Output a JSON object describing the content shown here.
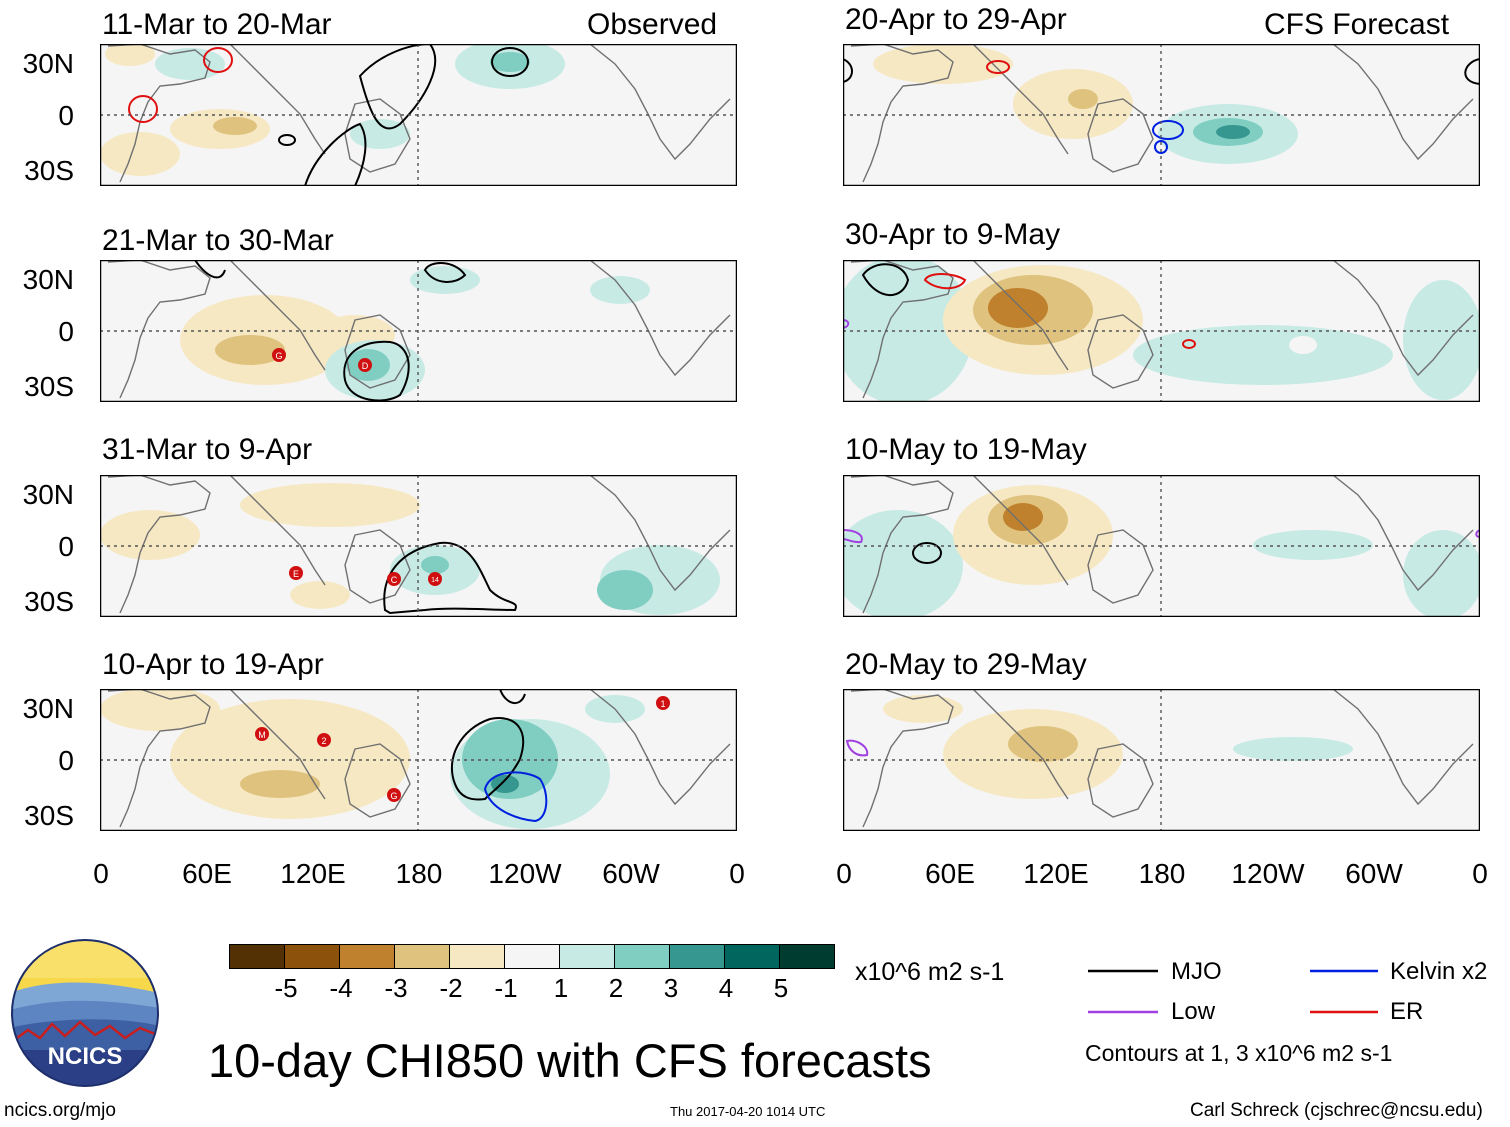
{
  "left_panels": [
    {
      "title": "11-Mar to 20-Mar",
      "tag": "Observed"
    },
    {
      "title": "21-Mar to 30-Mar",
      "tag": ""
    },
    {
      "title": "31-Mar to 9-Apr",
      "tag": ""
    },
    {
      "title": "10-Apr to 19-Apr",
      "tag": ""
    }
  ],
  "right_panels": [
    {
      "title": "20-Apr to 29-Apr",
      "tag": "CFS Forecast"
    },
    {
      "title": "30-Apr to 9-May",
      "tag": ""
    },
    {
      "title": "10-May to 19-May",
      "tag": ""
    },
    {
      "title": "20-May to 29-May",
      "tag": ""
    }
  ],
  "lat_labels": [
    "30N",
    "0",
    "30S"
  ],
  "lon_labels": [
    "0",
    "60E",
    "120E",
    "180",
    "120W",
    "60W",
    "0"
  ],
  "storm_labels": {
    "p2": [
      "G",
      "D"
    ],
    "p3": [
      "E",
      "C",
      "14"
    ],
    "p4": [
      "M",
      "2",
      "G",
      "1"
    ]
  },
  "colorbar": {
    "colors": [
      "#543005",
      "#8c510a",
      "#bf812d",
      "#dfc27d",
      "#f6e8c3",
      "#f5f5f5",
      "#c7eae5",
      "#80cdc1",
      "#35978f",
      "#01665e",
      "#003c30"
    ],
    "tick_labels": [
      "-5",
      "-4",
      "-3",
      "-2",
      "-1",
      "1",
      "2",
      "3",
      "4",
      "5"
    ],
    "units": "x10^6 m2 s-1"
  },
  "legend": {
    "items": [
      {
        "label": "MJO",
        "color": "#000000"
      },
      {
        "label": "Kelvin x2",
        "color": "#0020e0"
      },
      {
        "label": "Low",
        "color": "#a040e0"
      },
      {
        "label": "ER",
        "color": "#e01010"
      }
    ],
    "note": "Contours at 1, 3 x10^6 m2 s-1"
  },
  "main_title": "10-day CHI850 with CFS forecasts",
  "logo_text": "NCICS",
  "footer": {
    "left": "ncics.org/mjo",
    "center": "Thu 2017-04-20 1014 UTC",
    "right": "Carl Schreck (cjschrec@ncsu.edu)"
  }
}
